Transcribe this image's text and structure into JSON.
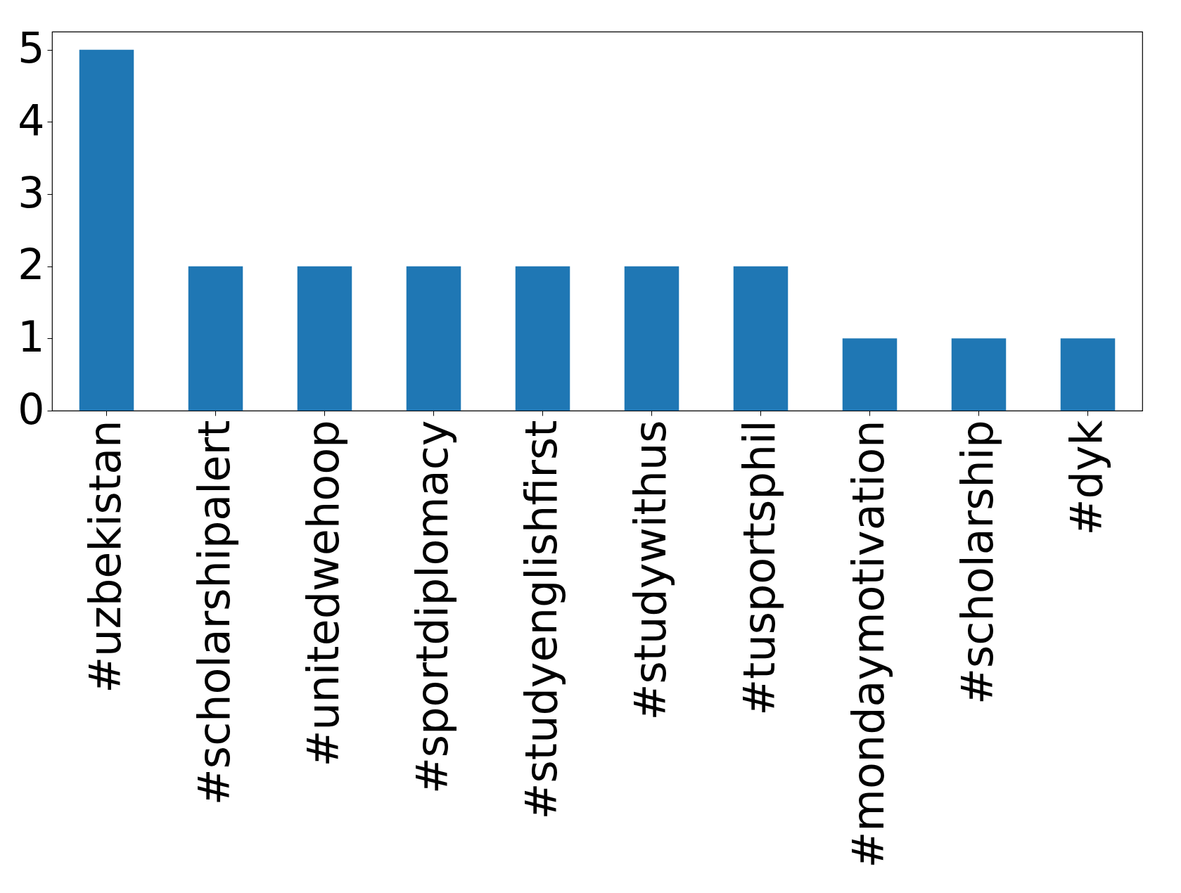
{
  "chart_data": {
    "type": "bar",
    "categories": [
      "#uzbekistan",
      "#scholarshipalert",
      "#unitedwehoop",
      "#sportdiplomacy",
      "#studyenglishfirst",
      "#studywithus",
      "#tusportsphil",
      "#mondaymotivation",
      "#scholarship",
      "#dyk"
    ],
    "values": [
      5,
      2,
      2,
      2,
      2,
      2,
      2,
      1,
      1,
      1
    ],
    "color": "#1f77b4",
    "ylim": [
      0,
      5.25
    ],
    "yticks": [
      0,
      1,
      2,
      3,
      4,
      5
    ],
    "grid": false
  }
}
